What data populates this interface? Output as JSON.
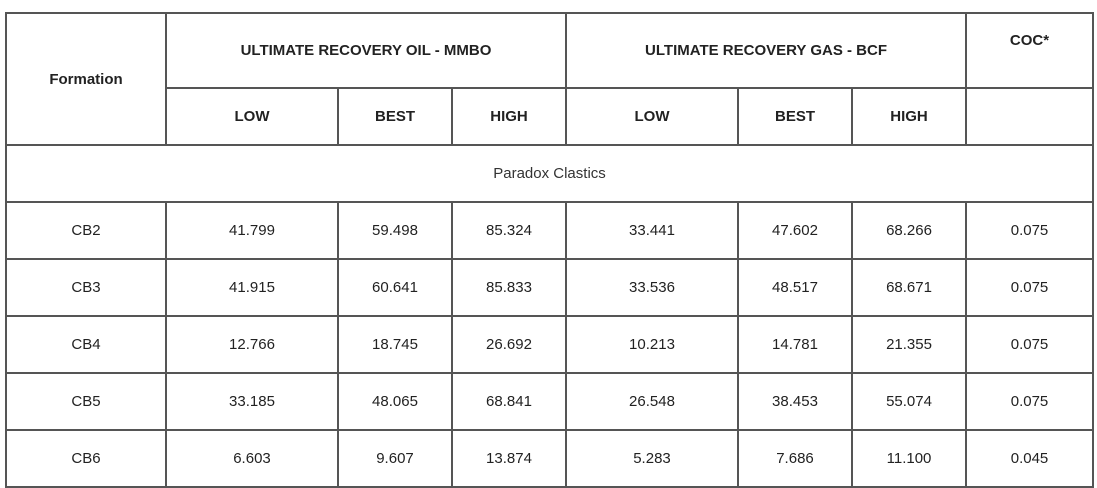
{
  "headers": {
    "formation": "Formation",
    "oil_group": "ULTIMATE RECOVERY OIL - MMBO",
    "gas_group": "ULTIMATE RECOVERY GAS - BCF",
    "coc": "COC*",
    "oil_low": "LOW",
    "oil_best": "BEST",
    "oil_high": "HIGH",
    "gas_low": "LOW",
    "gas_best": "BEST",
    "gas_high": "HIGH"
  },
  "section_title": "Paradox Clastics",
  "rows": [
    [
      "CB2",
      "41.799",
      "59.498",
      "85.324",
      "33.441",
      "47.602",
      "68.266",
      "0.075"
    ],
    [
      "CB3",
      "41.915",
      "60.641",
      "85.833",
      "33.536",
      "48.517",
      "68.671",
      "0.075"
    ],
    [
      "CB4",
      "12.766",
      "18.745",
      "26.692",
      "10.213",
      "14.781",
      "21.355",
      "0.075"
    ],
    [
      "CB5",
      "33.185",
      "48.065",
      "68.841",
      "26.548",
      "38.453",
      "55.074",
      "0.075"
    ],
    [
      "CB6",
      "6.603",
      "9.607",
      "13.874",
      "5.283",
      "7.686",
      "11.100",
      "0.045"
    ]
  ]
}
